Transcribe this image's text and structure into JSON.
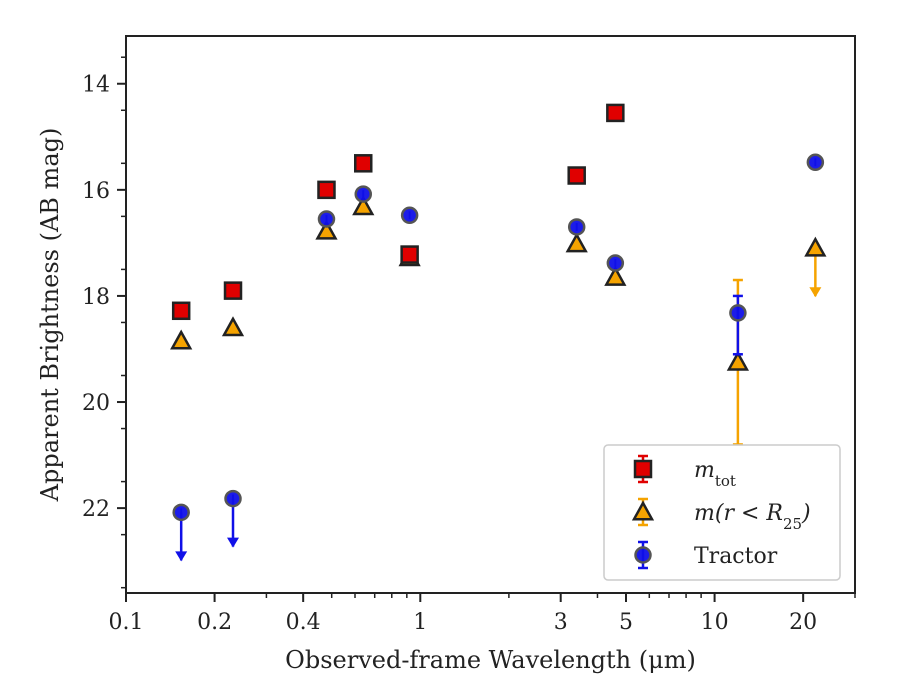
{
  "chart_data": {
    "type": "scatter",
    "xlabel": "Observed-frame Wavelength (μm)",
    "ylabel": "Apparent Brightness (AB mag)",
    "xscale": "log",
    "xlim": [
      0.1,
      30
    ],
    "ylim": [
      23.6,
      13.1
    ],
    "y_inverted": true,
    "x_ticks": [
      0.1,
      0.2,
      0.4,
      1,
      3,
      5,
      10,
      20
    ],
    "x_tick_labels": [
      "0.1",
      "0.2",
      "0.4",
      "1",
      "3",
      "5",
      "10",
      "20"
    ],
    "y_ticks": [
      14,
      16,
      18,
      20,
      22
    ],
    "y_tick_labels": [
      "14",
      "16",
      "18",
      "20",
      "22"
    ],
    "legend_position": "lower-right",
    "series": [
      {
        "name": "m_tot",
        "legend_main": "m",
        "legend_sub": "tot",
        "marker": "square",
        "color": "#e00000",
        "points": [
          {
            "x": 0.154,
            "y": 18.28
          },
          {
            "x": 0.231,
            "y": 17.9
          },
          {
            "x": 0.48,
            "y": 16.0
          },
          {
            "x": 0.64,
            "y": 15.5
          },
          {
            "x": 0.92,
            "y": 17.22
          },
          {
            "x": 3.4,
            "y": 15.73
          },
          {
            "x": 4.6,
            "y": 14.55
          }
        ]
      },
      {
        "name": "m(r < R25)",
        "legend_main": "m(r < R",
        "legend_sub": "25",
        "legend_tail": ")",
        "marker": "triangle",
        "color": "#f5a300",
        "points": [
          {
            "x": 0.154,
            "y": 18.85
          },
          {
            "x": 0.231,
            "y": 18.6
          },
          {
            "x": 0.48,
            "y": 16.78
          },
          {
            "x": 0.64,
            "y": 16.32
          },
          {
            "x": 0.92,
            "y": 17.28
          },
          {
            "x": 3.4,
            "y": 17.02
          },
          {
            "x": 4.6,
            "y": 17.65
          },
          {
            "x": 12.0,
            "y": 19.25,
            "err_low": 17.7,
            "err_high": 20.8
          },
          {
            "x": 22.0,
            "y": 17.1,
            "upper_limit": true
          }
        ]
      },
      {
        "name": "Tractor",
        "marker": "circle",
        "color": "#1010e8",
        "points": [
          {
            "x": 0.154,
            "y": 22.08,
            "upper_limit": true
          },
          {
            "x": 0.231,
            "y": 21.82,
            "upper_limit": true
          },
          {
            "x": 0.48,
            "y": 16.55
          },
          {
            "x": 0.64,
            "y": 16.08
          },
          {
            "x": 0.92,
            "y": 16.48
          },
          {
            "x": 3.4,
            "y": 16.7
          },
          {
            "x": 4.6,
            "y": 17.38
          },
          {
            "x": 12.0,
            "y": 18.32,
            "err_low": 18.0,
            "err_high": 19.1
          },
          {
            "x": 22.0,
            "y": 15.48
          }
        ]
      }
    ]
  }
}
